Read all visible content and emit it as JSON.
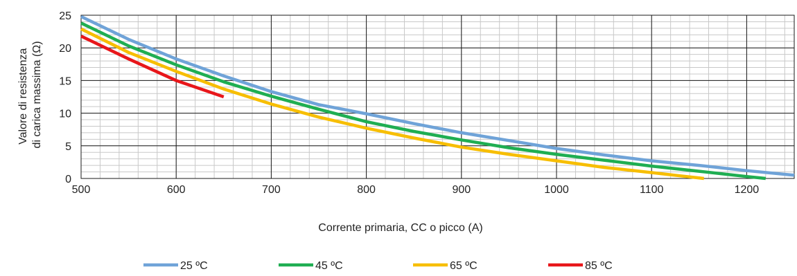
{
  "chart_data": {
    "type": "line",
    "title": "",
    "xlabel": "Corrente primaria, CC o picco (A)",
    "ylabel_lines": [
      "Valore di resistenza",
      "di carica massima (Ω)"
    ],
    "xlim": [
      500,
      1250
    ],
    "ylim": [
      0,
      25
    ],
    "x_major_ticks": [
      500,
      600,
      700,
      800,
      900,
      1000,
      1100,
      1200
    ],
    "x_tick_labels": [
      "500",
      "600",
      "700",
      "800",
      "900",
      "1000",
      "1100",
      "1200"
    ],
    "y_major_ticks": [
      0,
      5,
      10,
      15,
      20,
      25
    ],
    "y_tick_labels": [
      "0",
      "5",
      "10",
      "15",
      "20",
      "25"
    ],
    "x_minor_step": 20,
    "y_minor_step": 1,
    "grid": true,
    "legend_position": "bottom",
    "series": [
      {
        "name": "25 ºC",
        "color": "#6fa3d8",
        "x": [
          500,
          550,
          600,
          650,
          700,
          750,
          800,
          850,
          900,
          950,
          1000,
          1050,
          1100,
          1150,
          1200,
          1250
        ],
        "y": [
          24.8,
          21.3,
          18.3,
          15.7,
          13.3,
          11.3,
          9.9,
          8.4,
          7.0,
          5.8,
          4.6,
          3.6,
          2.7,
          2.0,
          1.2,
          0.5
        ]
      },
      {
        "name": "45 ºC",
        "color": "#1fae52",
        "x": [
          500,
          550,
          600,
          650,
          700,
          750,
          800,
          850,
          900,
          950,
          1000,
          1050,
          1100,
          1150,
          1200,
          1220
        ],
        "y": [
          23.8,
          20.3,
          17.4,
          14.8,
          12.6,
          10.6,
          8.7,
          7.2,
          5.9,
          4.7,
          3.7,
          2.8,
          1.9,
          1.1,
          0.3,
          0.0
        ]
      },
      {
        "name": "65 ºC",
        "color": "#f7be00",
        "x": [
          500,
          550,
          600,
          650,
          700,
          750,
          800,
          850,
          900,
          950,
          1000,
          1050,
          1100,
          1130,
          1155
        ],
        "y": [
          22.9,
          19.3,
          16.4,
          13.7,
          11.4,
          9.4,
          7.7,
          6.2,
          4.8,
          3.7,
          2.7,
          1.7,
          0.9,
          0.4,
          0.0
        ]
      },
      {
        "name": "85 ºC",
        "color": "#e8161a",
        "x": [
          500,
          550,
          600,
          650
        ],
        "y": [
          21.8,
          18.3,
          15.0,
          12.5
        ]
      }
    ]
  }
}
